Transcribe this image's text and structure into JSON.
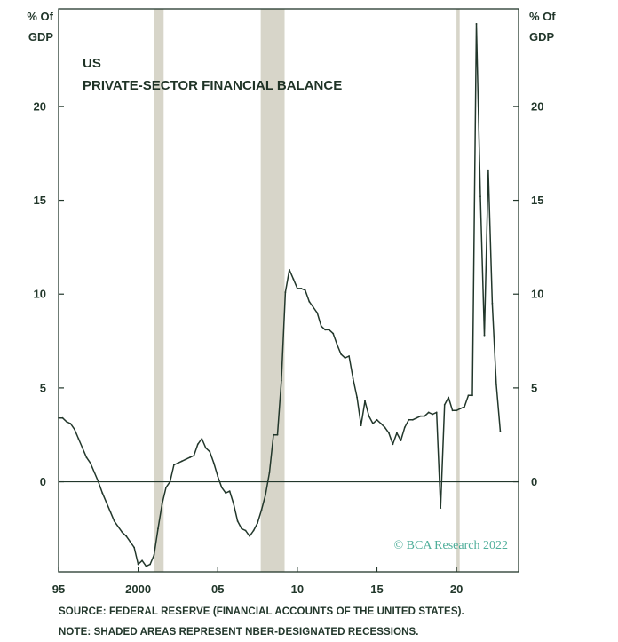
{
  "chart_data": {
    "type": "line",
    "title": "US",
    "subtitle": "PRIVATE-SECTOR FINANCIAL BALANCE",
    "y_unit_left": [
      "% Of",
      "GDP"
    ],
    "y_unit_right": [
      "% Of",
      "GDP"
    ],
    "x_tick_labels": [
      "95",
      "2000",
      "05",
      "10",
      "15",
      "20"
    ],
    "x_ticks": [
      1995,
      2000,
      2005,
      2010,
      2015,
      2020
    ],
    "y_ticks": [
      0,
      5,
      10,
      15,
      20
    ],
    "xlim": [
      1995.0,
      2023.9
    ],
    "ylim": [
      -4.8,
      25.2
    ],
    "grid": false,
    "zero_line": true,
    "recessions": [
      [
        2001.0,
        2001.6
      ],
      [
        2007.7,
        2009.2
      ],
      [
        2020.0,
        2020.2
      ]
    ],
    "series": [
      {
        "points": [
          [
            1995.0,
            3.4
          ],
          [
            1995.25,
            3.4
          ],
          [
            1995.5,
            3.2
          ],
          [
            1995.75,
            3.1
          ],
          [
            1996.0,
            2.8
          ],
          [
            1996.25,
            2.3
          ],
          [
            1996.5,
            1.8
          ],
          [
            1996.75,
            1.3
          ],
          [
            1997.0,
            1.0
          ],
          [
            1997.25,
            0.5
          ],
          [
            1997.5,
            0.0
          ],
          [
            1997.75,
            -0.6
          ],
          [
            1998.0,
            -1.1
          ],
          [
            1998.25,
            -1.6
          ],
          [
            1998.5,
            -2.1
          ],
          [
            1998.75,
            -2.4
          ],
          [
            1999.0,
            -2.7
          ],
          [
            1999.25,
            -2.9
          ],
          [
            1999.5,
            -3.2
          ],
          [
            1999.75,
            -3.5
          ],
          [
            2000.0,
            -4.4
          ],
          [
            2000.25,
            -4.2
          ],
          [
            2000.5,
            -4.5
          ],
          [
            2000.75,
            -4.4
          ],
          [
            2001.0,
            -3.9
          ],
          [
            2001.25,
            -2.5
          ],
          [
            2001.5,
            -1.2
          ],
          [
            2001.75,
            -0.3
          ],
          [
            2002.0,
            0.0
          ],
          [
            2002.25,
            0.9
          ],
          [
            2002.5,
            1.0
          ],
          [
            2002.75,
            1.1
          ],
          [
            2003.0,
            1.2
          ],
          [
            2003.25,
            1.3
          ],
          [
            2003.5,
            1.4
          ],
          [
            2003.75,
            2.0
          ],
          [
            2004.0,
            2.3
          ],
          [
            2004.25,
            1.8
          ],
          [
            2004.5,
            1.6
          ],
          [
            2004.75,
            1.0
          ],
          [
            2005.0,
            0.3
          ],
          [
            2005.25,
            -0.3
          ],
          [
            2005.5,
            -0.6
          ],
          [
            2005.75,
            -0.5
          ],
          [
            2006.0,
            -1.2
          ],
          [
            2006.25,
            -2.1
          ],
          [
            2006.5,
            -2.5
          ],
          [
            2006.75,
            -2.6
          ],
          [
            2007.0,
            -2.9
          ],
          [
            2007.25,
            -2.6
          ],
          [
            2007.5,
            -2.2
          ],
          [
            2007.75,
            -1.5
          ],
          [
            2008.0,
            -0.7
          ],
          [
            2008.25,
            0.5
          ],
          [
            2008.5,
            2.5
          ],
          [
            2008.75,
            2.5
          ],
          [
            2009.0,
            5.4
          ],
          [
            2009.25,
            10.1
          ],
          [
            2009.5,
            11.3
          ],
          [
            2009.75,
            10.8
          ],
          [
            2010.0,
            10.3
          ],
          [
            2010.25,
            10.3
          ],
          [
            2010.5,
            10.2
          ],
          [
            2010.75,
            9.6
          ],
          [
            2011.0,
            9.3
          ],
          [
            2011.25,
            9.0
          ],
          [
            2011.5,
            8.3
          ],
          [
            2011.75,
            8.1
          ],
          [
            2012.0,
            8.1
          ],
          [
            2012.25,
            7.9
          ],
          [
            2012.5,
            7.3
          ],
          [
            2012.75,
            6.8
          ],
          [
            2013.0,
            6.6
          ],
          [
            2013.25,
            6.7
          ],
          [
            2013.5,
            5.5
          ],
          [
            2013.75,
            4.5
          ],
          [
            2014.0,
            3.0
          ],
          [
            2014.25,
            4.3
          ],
          [
            2014.5,
            3.5
          ],
          [
            2014.75,
            3.1
          ],
          [
            2015.0,
            3.3
          ],
          [
            2015.25,
            3.1
          ],
          [
            2015.5,
            2.9
          ],
          [
            2015.75,
            2.6
          ],
          [
            2016.0,
            2.0
          ],
          [
            2016.25,
            2.6
          ],
          [
            2016.5,
            2.2
          ],
          [
            2016.75,
            2.9
          ],
          [
            2017.0,
            3.3
          ],
          [
            2017.25,
            3.3
          ],
          [
            2017.5,
            3.4
          ],
          [
            2017.75,
            3.5
          ],
          [
            2018.0,
            3.5
          ],
          [
            2018.25,
            3.7
          ],
          [
            2018.5,
            3.6
          ],
          [
            2018.75,
            3.7
          ],
          [
            2019.0,
            -1.4
          ],
          [
            2019.25,
            4.1
          ],
          [
            2019.5,
            4.5
          ],
          [
            2019.75,
            3.8
          ],
          [
            2020.0,
            3.8
          ],
          [
            2020.25,
            3.9
          ],
          [
            2020.5,
            4.0
          ],
          [
            2020.75,
            4.6
          ],
          [
            2021.0,
            4.6
          ],
          [
            2021.25,
            24.4
          ],
          [
            2021.5,
            15.2
          ],
          [
            2021.75,
            7.8
          ],
          [
            2022.0,
            16.6
          ],
          [
            2022.25,
            9.5
          ],
          [
            2022.5,
            5.2
          ],
          [
            2022.75,
            2.7
          ]
        ]
      }
    ],
    "watermark": "© BCA Research 2022"
  },
  "footer": {
    "source": "SOURCE: FEDERAL RESERVE (FINANCIAL ACCOUNTS OF THE UNITED STATES).",
    "note": "NOTE: SHADED AREAS REPRESENT NBER-DESIGNATED RECESSIONS."
  },
  "colors": {
    "line": "#22372b",
    "axis": "#22372b",
    "recession": "#d7d5c9",
    "watermark": "#4fae9a"
  }
}
